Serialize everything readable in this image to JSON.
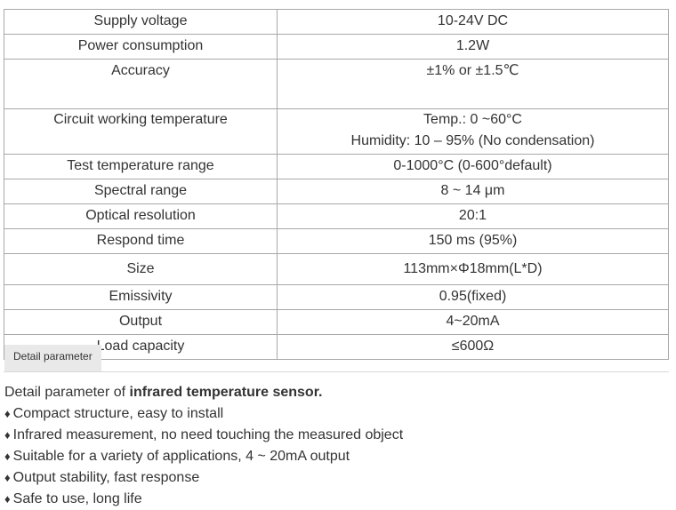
{
  "spec_table": {
    "rows": [
      {
        "label": "Supply voltage",
        "values": [
          "10-24V DC"
        ]
      },
      {
        "label": "Power consumption",
        "values": [
          "1.2W"
        ]
      },
      {
        "label": "Accuracy",
        "values": [
          "±1% or ±1.5℃"
        ]
      },
      {
        "label": "Circuit working temperature",
        "values": [
          "Temp.: 0 ~60°C",
          "Humidity:  10 – 95% (No condensation)"
        ]
      },
      {
        "label": "Test temperature range",
        "values": [
          "0-1000°C (0-600°default)"
        ]
      },
      {
        "label": "Spectral range",
        "values": [
          "8 ~ 14 μm"
        ]
      },
      {
        "label": "Optical resolution",
        "values": [
          "20:1"
        ]
      },
      {
        "label": "Respond time",
        "values": [
          "150 ms (95%)"
        ]
      },
      {
        "label": "Size",
        "values": [
          "113mm×Φ18mm(L*D)"
        ]
      },
      {
        "label": "Emissivity",
        "values": [
          "0.95(fixed)"
        ]
      },
      {
        "label": "Output",
        "values": [
          "4~20mA"
        ]
      },
      {
        "label": "Load capacity",
        "values": [
          "≤600Ω"
        ]
      }
    ]
  },
  "tab": {
    "label": "Detail parameter"
  },
  "description": {
    "intro_prefix": "Detail parameter of ",
    "intro_bold": "infrared temperature sensor.",
    "bullet_symbol": "♦",
    "bullets": [
      "Compact structure, easy to install",
      "Infrared measurement, no need touching the measured object",
      "Suitable for a variety of applications, 4 ~ 20mA output",
      "Output stability, fast response",
      "Safe to use, long life"
    ]
  }
}
